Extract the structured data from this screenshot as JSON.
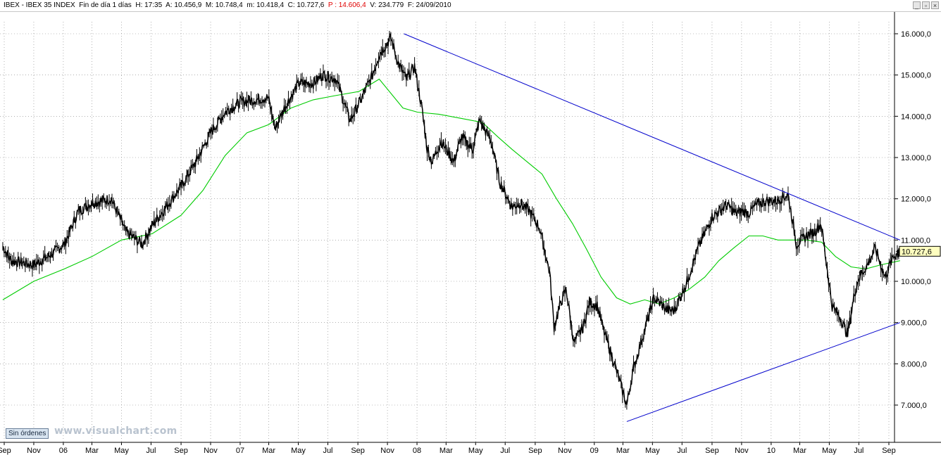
{
  "header": {
    "symbol": "IBEX - IBEX 35 INDEX",
    "period": "Fin de día 1 días",
    "hour": "H: 17:35",
    "open": "A: 10.456,9",
    "high": "M: 10.748,4",
    "low": "m: 10.418,4",
    "close": "C: 10.727,6",
    "change": "P : 14.606,4",
    "volume": "V: 234.779",
    "date": "F: 24/09/2010"
  },
  "window_buttons": [
    "_",
    "▫",
    "×"
  ],
  "footer": {
    "orders_button": "Sin órdenes",
    "watermark": "www.visualchart.com"
  },
  "colors": {
    "price": "#000000",
    "moving_average": "#00cc00",
    "trendlines": "#0000cc",
    "grid": "#808080",
    "last_price_label_bg": "#ffffc0"
  },
  "chart_data": {
    "type": "line",
    "title": "IBEX - IBEX 35 INDEX",
    "ylim": [
      6200,
      16500
    ],
    "y_ticks": [
      7000,
      8000,
      9000,
      10000,
      11000,
      12000,
      13000,
      14000,
      15000,
      16000
    ],
    "y_tick_labels": [
      "7.000,0",
      "8.000,0",
      "9.000,0",
      "10.000,0",
      "11.000,0",
      "12.000,0",
      "13.000,0",
      "14.000,0",
      "15.000,0",
      "16.000,0"
    ],
    "x_tick_labels": [
      "Sep",
      "Nov",
      "06",
      "Mar",
      "May",
      "Jul",
      "Sep",
      "Nov",
      "07",
      "Mar",
      "May",
      "Jul",
      "Sep",
      "Nov",
      "08",
      "Mar",
      "May",
      "Jul",
      "Sep",
      "Nov",
      "09",
      "Mar",
      "May",
      "Jul",
      "Sep",
      "Nov",
      "10",
      "Mar",
      "May",
      "Jul",
      "Sep"
    ],
    "x_tick_dates": [
      "2005-09-01",
      "2005-11-01",
      "2006-01-01",
      "2006-03-01",
      "2006-05-01",
      "2006-07-01",
      "2006-09-01",
      "2006-11-01",
      "2007-01-01",
      "2007-03-01",
      "2007-05-01",
      "2007-07-01",
      "2007-09-01",
      "2007-11-01",
      "2008-01-01",
      "2008-03-01",
      "2008-05-01",
      "2008-07-01",
      "2008-09-01",
      "2008-11-01",
      "2009-01-01",
      "2009-03-01",
      "2009-05-01",
      "2009-07-01",
      "2009-09-01",
      "2009-11-01",
      "2010-01-01",
      "2010-03-01",
      "2010-05-01",
      "2010-07-01",
      "2010-09-01"
    ],
    "series": [
      {
        "x": [
          "2005-08-29",
          "2005-09-15",
          "2005-10-10",
          "2005-11-01",
          "2005-12-01",
          "2006-01-03",
          "2006-02-01",
          "2006-03-01",
          "2006-04-10",
          "2006-05-10",
          "2006-06-13",
          "2006-07-03",
          "2006-08-01",
          "2006-09-01",
          "2006-10-02",
          "2006-11-01",
          "2006-12-01",
          "2007-01-02",
          "2007-02-01",
          "2007-02-28",
          "2007-03-14",
          "2007-04-02",
          "2007-05-02",
          "2007-06-01",
          "2007-06-20",
          "2007-07-18",
          "2007-08-16",
          "2007-09-03",
          "2007-10-01",
          "2007-10-15",
          "2007-11-08",
          "2007-11-23",
          "2007-12-10",
          "2007-12-27",
          "2008-01-11",
          "2008-01-22",
          "2008-02-01",
          "2008-02-20",
          "2008-03-17",
          "2008-04-02",
          "2008-04-25",
          "2008-05-09",
          "2008-06-02",
          "2008-06-20",
          "2008-07-15",
          "2008-08-01",
          "2008-08-20",
          "2008-09-10",
          "2008-10-01",
          "2008-10-10",
          "2008-10-27",
          "2008-11-04",
          "2008-11-20",
          "2008-12-09",
          "2008-12-22",
          "2009-01-07",
          "2009-01-23",
          "2009-02-09",
          "2009-03-09",
          "2009-03-23",
          "2009-04-07",
          "2009-05-04",
          "2009-06-01",
          "2009-06-15",
          "2009-07-10",
          "2009-08-03",
          "2009-09-01",
          "2009-10-01",
          "2009-10-20",
          "2009-11-02",
          "2009-11-16",
          "2009-12-01",
          "2009-12-22",
          "2010-01-12",
          "2010-02-05",
          "2010-02-22",
          "2010-03-15",
          "2010-04-01",
          "2010-04-14",
          "2010-05-07",
          "2010-05-25",
          "2010-06-08",
          "2010-06-22",
          "2010-07-01",
          "2010-07-19",
          "2010-08-04",
          "2010-08-24",
          "2010-09-10",
          "2010-09-24"
        ],
        "values": [
          10850,
          10500,
          10450,
          10400,
          10600,
          10900,
          11700,
          11900,
          12000,
          11200,
          10900,
          11350,
          11800,
          12300,
          12900,
          13600,
          14100,
          14350,
          14400,
          14450,
          13700,
          14200,
          14800,
          14800,
          15000,
          14900,
          13900,
          14300,
          15000,
          15500,
          15900,
          15300,
          14900,
          15200,
          14200,
          13200,
          12900,
          13400,
          12900,
          13500,
          13200,
          13900,
          13400,
          12400,
          11800,
          11900,
          11700,
          11300,
          10200,
          8900,
          9600,
          9800,
          8500,
          8900,
          9500,
          9400,
          8700,
          8100,
          7000,
          7900,
          8500,
          9600,
          9300,
          9300,
          9950,
          10800,
          11550,
          11850,
          11650,
          11700,
          11650,
          11850,
          11950,
          11950,
          12100,
          10900,
          11100,
          11200,
          11400,
          9400,
          9100,
          8700,
          9700,
          10100,
          10400,
          10800,
          10100,
          10600,
          10727.6
        ]
      },
      {
        "x": [
          "2005-08-29",
          "2005-11-01",
          "2006-01-03",
          "2006-03-01",
          "2006-05-01",
          "2006-07-03",
          "2006-09-01",
          "2006-10-16",
          "2006-12-01",
          "2007-01-15",
          "2007-03-01",
          "2007-04-16",
          "2007-06-01",
          "2007-07-16",
          "2007-09-03",
          "2007-10-15",
          "2007-12-03",
          "2008-01-02",
          "2008-02-15",
          "2008-04-01",
          "2008-05-15",
          "2008-06-16",
          "2008-07-15",
          "2008-08-15",
          "2008-09-15",
          "2008-10-15",
          "2008-11-17",
          "2008-12-15",
          "2009-01-15",
          "2009-02-16",
          "2009-03-16",
          "2009-04-15",
          "2009-05-15",
          "2009-06-15",
          "2009-07-15",
          "2009-08-17",
          "2009-09-15",
          "2009-10-15",
          "2009-11-16",
          "2009-12-15",
          "2010-01-15",
          "2010-02-15",
          "2010-03-15",
          "2010-04-15",
          "2010-05-14",
          "2010-06-15",
          "2010-07-15",
          "2010-08-16",
          "2010-09-24"
        ],
        "values": [
          9550,
          10000,
          10300,
          10600,
          11000,
          11150,
          11600,
          12200,
          13050,
          13600,
          13800,
          14200,
          14400,
          14500,
          14600,
          14900,
          14200,
          14100,
          14050,
          13950,
          13850,
          13500,
          13200,
          12900,
          12600,
          12000,
          11400,
          10800,
          10100,
          9600,
          9450,
          9550,
          9450,
          9600,
          9800,
          10100,
          10500,
          10800,
          11100,
          11100,
          11000,
          11000,
          11000,
          10950,
          10600,
          10350,
          10300,
          10400,
          10500
        ]
      }
    ],
    "trendlines": [
      {
        "x": [
          "2007-12-05",
          "2010-09-24"
        ],
        "y": [
          16000,
          11000
        ]
      },
      {
        "x": [
          "2009-03-09",
          "2010-09-24"
        ],
        "y": [
          6600,
          9000
        ]
      }
    ],
    "last_value_label": "10.727,6",
    "grid": true
  }
}
